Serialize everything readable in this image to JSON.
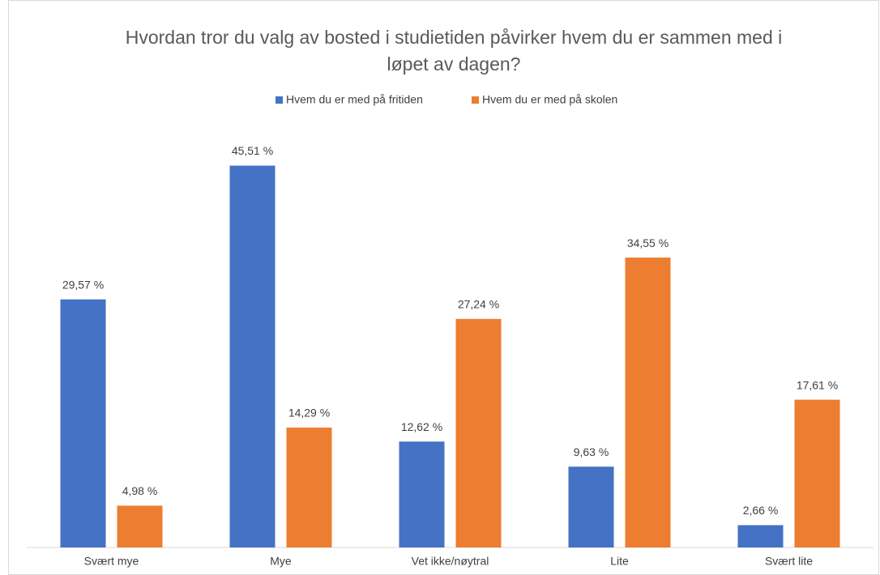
{
  "chart_data": {
    "type": "bar",
    "title": "Hvordan tror du valg av bosted i studietiden påvirker hvem du er sammen med i løpet av dagen?",
    "categories": [
      "Svært mye",
      "Mye",
      "Vet ikke/nøytral",
      "Lite",
      "Svært lite"
    ],
    "series": [
      {
        "name": "Hvem du er med på fritiden",
        "color": "#4472c4",
        "values": [
          29.57,
          45.51,
          12.62,
          9.63,
          2.66
        ],
        "value_labels": [
          "29,57 %",
          "45,51 %",
          "12,62 %",
          "9,63 %",
          "2,66 %"
        ]
      },
      {
        "name": "Hvem du er med på skolen",
        "color": "#ed7d31",
        "values": [
          4.98,
          14.29,
          27.24,
          34.55,
          17.61
        ],
        "value_labels": [
          "4,98 %",
          "14,29 %",
          "27,24 %",
          "34,55 %",
          "17,61 %"
        ]
      }
    ],
    "ylim": [
      0,
      50
    ],
    "legend": "top"
  }
}
